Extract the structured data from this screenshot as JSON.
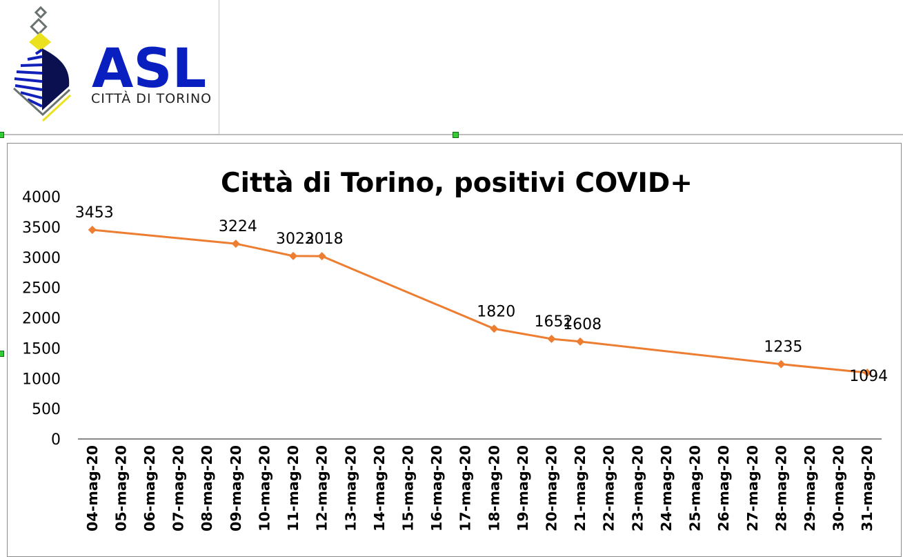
{
  "logo": {
    "text": "ASL",
    "subtext": "CITTÀ DI TORINO"
  },
  "chart_data": {
    "type": "line",
    "title": "Città di Torino, positivi COVID+",
    "categories": [
      "04-mag-20",
      "05-mag-20",
      "06-mag-20",
      "07-mag-20",
      "08-mag-20",
      "09-mag-20",
      "10-mag-20",
      "11-mag-20",
      "12-mag-20",
      "13-mag-20",
      "14-mag-20",
      "15-mag-20",
      "16-mag-20",
      "17-mag-20",
      "18-mag-20",
      "19-mag-20",
      "20-mag-20",
      "21-mag-20",
      "22-mag-20",
      "23-mag-20",
      "24-mag-20",
      "25-mag-20",
      "26-mag-20",
      "27-mag-20",
      "28-mag-20",
      "29-mag-20",
      "30-mag-20",
      "31-mag-20"
    ],
    "points": [
      {
        "x": "04-mag-20",
        "y": 3453
      },
      {
        "x": "09-mag-20",
        "y": 3224
      },
      {
        "x": "11-mag-20",
        "y": 3022
      },
      {
        "x": "12-mag-20",
        "y": 3018
      },
      {
        "x": "18-mag-20",
        "y": 1820
      },
      {
        "x": "20-mag-20",
        "y": 1652
      },
      {
        "x": "21-mag-20",
        "y": 1608
      },
      {
        "x": "28-mag-20",
        "y": 1235
      },
      {
        "x": "31-mag-20",
        "y": 1094
      }
    ],
    "yticks": [
      0,
      500,
      1000,
      1500,
      2000,
      2500,
      3000,
      3500,
      4000
    ],
    "ylim": [
      0,
      4000
    ],
    "grid": false,
    "color": "#ed7d31",
    "marker": "diamond",
    "data_labels": true
  }
}
